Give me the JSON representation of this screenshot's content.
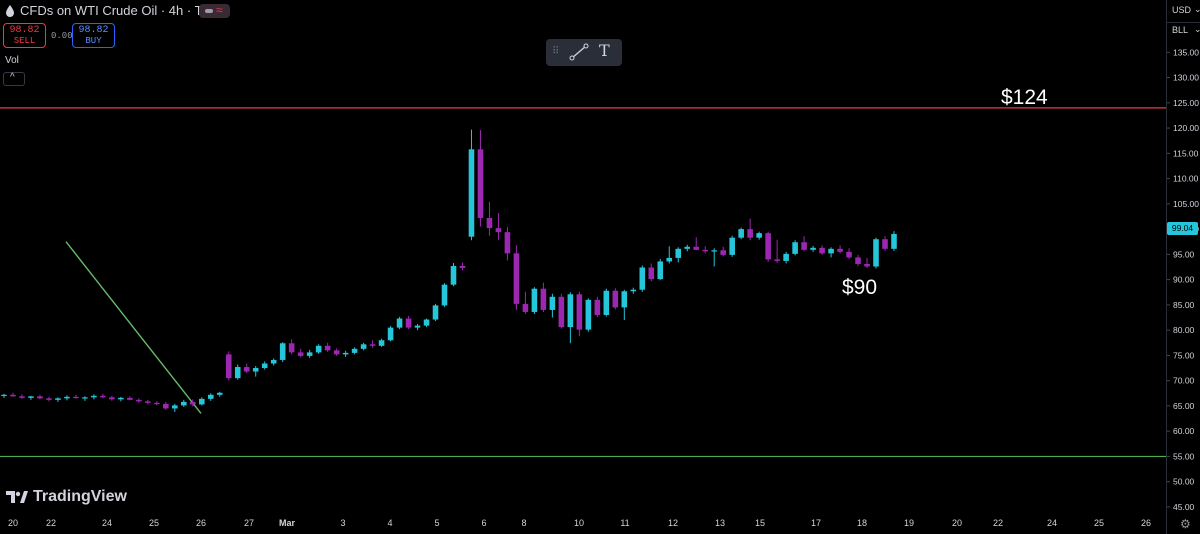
{
  "header": {
    "symbol_title": "CFDs on WTI Crude Oil · 4h · TVC",
    "sell": {
      "price": "98.82",
      "label": "SELL"
    },
    "buy": {
      "price": "98.82",
      "label": "BUY"
    },
    "spread": "0.00",
    "volume_label": "Vol"
  },
  "price_axis": {
    "currency": "USD",
    "unit": "BLL",
    "last_price": "99.04",
    "ticks": [
      "45.00",
      "50.00",
      "55.00",
      "60.00",
      "65.00",
      "70.00",
      "75.00",
      "80.00",
      "85.00",
      "90.00",
      "95.00",
      "100.00",
      "105.00",
      "110.00",
      "115.00",
      "120.00",
      "125.00",
      "130.00",
      "135.00"
    ]
  },
  "annotations": {
    "resistance_label": "$124",
    "trend_label": "$90"
  },
  "brand": "TradingView",
  "colors": {
    "background": "#000000",
    "bull": "#26c6da",
    "bear": "#9c27b0",
    "resistance": "#f23645",
    "support": "#4caf50",
    "trendline": "#66bb6a",
    "text": "#d1d4dc"
  },
  "chart_data": {
    "type": "candlestick",
    "title": "CFDs on WTI Crude Oil · 4h · TVC",
    "ylim": [
      44,
      141
    ],
    "y_ticks": [
      45,
      50,
      55,
      60,
      65,
      70,
      75,
      80,
      85,
      90,
      95,
      100,
      105,
      110,
      115,
      120,
      125,
      130,
      135
    ],
    "x_axis": {
      "labels": [
        "20",
        "22",
        "24",
        "25",
        "26",
        "27",
        "Mar",
        "3",
        "4",
        "5",
        "6",
        "8",
        "10",
        "11",
        "12",
        "13",
        "15",
        "17",
        "18",
        "19",
        "20",
        "22",
        "24",
        "25",
        "26"
      ]
    },
    "horizontal_lines": [
      {
        "value": 124,
        "color": "#f23645",
        "label": "$124"
      },
      {
        "value": 55,
        "color": "#4caf50"
      }
    ],
    "trendline": {
      "from": {
        "x": "26",
        "y": 63.5
      },
      "to": {
        "x": "22",
        "y": 97.5
      },
      "label": "$90"
    },
    "last_price": 99.04,
    "candles": [
      {
        "o": 67.0,
        "h": 67.4,
        "l": 66.6,
        "c": 67.2
      },
      {
        "o": 67.2,
        "h": 67.6,
        "l": 66.8,
        "c": 66.9
      },
      {
        "o": 66.9,
        "h": 67.3,
        "l": 66.4,
        "c": 66.6
      },
      {
        "o": 66.6,
        "h": 67.0,
        "l": 66.2,
        "c": 66.9
      },
      {
        "o": 66.9,
        "h": 67.2,
        "l": 66.3,
        "c": 66.5
      },
      {
        "o": 66.5,
        "h": 66.8,
        "l": 65.9,
        "c": 66.2
      },
      {
        "o": 66.2,
        "h": 66.7,
        "l": 65.8,
        "c": 66.5
      },
      {
        "o": 66.5,
        "h": 67.1,
        "l": 66.1,
        "c": 66.8
      },
      {
        "o": 66.8,
        "h": 67.2,
        "l": 66.4,
        "c": 66.6
      },
      {
        "o": 66.6,
        "h": 66.9,
        "l": 66.0,
        "c": 66.7
      },
      {
        "o": 66.7,
        "h": 67.3,
        "l": 66.3,
        "c": 67.0
      },
      {
        "o": 67.0,
        "h": 67.4,
        "l": 66.5,
        "c": 66.7
      },
      {
        "o": 66.7,
        "h": 67.0,
        "l": 66.0,
        "c": 66.3
      },
      {
        "o": 66.3,
        "h": 66.8,
        "l": 65.9,
        "c": 66.6
      },
      {
        "o": 66.6,
        "h": 66.9,
        "l": 66.1,
        "c": 66.2
      },
      {
        "o": 66.2,
        "h": 66.5,
        "l": 65.6,
        "c": 65.9
      },
      {
        "o": 65.9,
        "h": 66.2,
        "l": 65.3,
        "c": 65.6
      },
      {
        "o": 65.6,
        "h": 66.0,
        "l": 65.1,
        "c": 65.4
      },
      {
        "o": 65.4,
        "h": 65.8,
        "l": 64.2,
        "c": 64.5
      },
      {
        "o": 64.5,
        "h": 65.4,
        "l": 63.8,
        "c": 65.1
      },
      {
        "o": 65.1,
        "h": 66.2,
        "l": 64.8,
        "c": 65.8
      },
      {
        "o": 65.8,
        "h": 66.3,
        "l": 64.9,
        "c": 65.3
      },
      {
        "o": 65.3,
        "h": 66.7,
        "l": 65.1,
        "c": 66.4
      },
      {
        "o": 66.4,
        "h": 67.5,
        "l": 66.0,
        "c": 67.2
      },
      {
        "o": 67.2,
        "h": 67.8,
        "l": 66.8,
        "c": 67.6
      },
      {
        "o": 75.2,
        "h": 75.8,
        "l": 70.0,
        "c": 70.5
      },
      {
        "o": 70.5,
        "h": 73.2,
        "l": 70.2,
        "c": 72.7
      },
      {
        "o": 72.7,
        "h": 73.4,
        "l": 71.5,
        "c": 71.8
      },
      {
        "o": 71.8,
        "h": 72.9,
        "l": 70.8,
        "c": 72.5
      },
      {
        "o": 72.5,
        "h": 73.8,
        "l": 72.2,
        "c": 73.4
      },
      {
        "o": 73.4,
        "h": 74.4,
        "l": 73.0,
        "c": 74.1
      },
      {
        "o": 74.1,
        "h": 77.6,
        "l": 73.7,
        "c": 77.4
      },
      {
        "o": 77.4,
        "h": 78.2,
        "l": 75.2,
        "c": 75.6
      },
      {
        "o": 75.6,
        "h": 76.3,
        "l": 74.6,
        "c": 74.9
      },
      {
        "o": 74.9,
        "h": 76.1,
        "l": 74.5,
        "c": 75.6
      },
      {
        "o": 75.6,
        "h": 77.2,
        "l": 75.3,
        "c": 76.9
      },
      {
        "o": 76.9,
        "h": 77.5,
        "l": 75.7,
        "c": 76.0
      },
      {
        "o": 76.0,
        "h": 76.4,
        "l": 74.9,
        "c": 75.2
      },
      {
        "o": 75.2,
        "h": 75.9,
        "l": 74.7,
        "c": 75.5
      },
      {
        "o": 75.5,
        "h": 76.6,
        "l": 75.2,
        "c": 76.3
      },
      {
        "o": 76.3,
        "h": 77.5,
        "l": 76.0,
        "c": 77.2
      },
      {
        "o": 77.2,
        "h": 78.0,
        "l": 76.5,
        "c": 76.9
      },
      {
        "o": 76.9,
        "h": 78.3,
        "l": 76.7,
        "c": 78.0
      },
      {
        "o": 78.0,
        "h": 80.8,
        "l": 77.8,
        "c": 80.5
      },
      {
        "o": 80.5,
        "h": 82.6,
        "l": 80.2,
        "c": 82.3
      },
      {
        "o": 82.3,
        "h": 82.8,
        "l": 80.2,
        "c": 80.5
      },
      {
        "o": 80.5,
        "h": 81.2,
        "l": 80.0,
        "c": 80.9
      },
      {
        "o": 80.9,
        "h": 82.3,
        "l": 80.6,
        "c": 82.1
      },
      {
        "o": 82.1,
        "h": 85.2,
        "l": 81.8,
        "c": 84.9
      },
      {
        "o": 84.9,
        "h": 89.3,
        "l": 84.6,
        "c": 89.0
      },
      {
        "o": 89.0,
        "h": 93.3,
        "l": 88.7,
        "c": 92.7
      },
      {
        "o": 92.7,
        "h": 93.4,
        "l": 91.8,
        "c": 92.3
      },
      {
        "o": 98.5,
        "h": 119.7,
        "l": 97.8,
        "c": 115.8
      },
      {
        "o": 115.8,
        "h": 119.6,
        "l": 100.5,
        "c": 102.2
      },
      {
        "o": 102.2,
        "h": 105.4,
        "l": 98.7,
        "c": 100.2
      },
      {
        "o": 100.2,
        "h": 103.2,
        "l": 97.8,
        "c": 99.4
      },
      {
        "o": 99.4,
        "h": 100.4,
        "l": 93.8,
        "c": 95.2
      },
      {
        "o": 95.2,
        "h": 96.8,
        "l": 84.0,
        "c": 85.2
      },
      {
        "o": 85.2,
        "h": 87.6,
        "l": 83.2,
        "c": 83.6
      },
      {
        "o": 83.6,
        "h": 88.5,
        "l": 83.2,
        "c": 88.2
      },
      {
        "o": 88.2,
        "h": 89.4,
        "l": 83.6,
        "c": 84.0
      },
      {
        "o": 84.0,
        "h": 87.2,
        "l": 82.5,
        "c": 86.6
      },
      {
        "o": 86.6,
        "h": 87.2,
        "l": 80.3,
        "c": 80.6
      },
      {
        "o": 80.6,
        "h": 87.5,
        "l": 77.4,
        "c": 87.1
      },
      {
        "o": 87.1,
        "h": 87.6,
        "l": 78.8,
        "c": 80.1
      },
      {
        "o": 80.1,
        "h": 86.3,
        "l": 79.7,
        "c": 86.0
      },
      {
        "o": 86.0,
        "h": 86.6,
        "l": 82.6,
        "c": 83.0
      },
      {
        "o": 83.0,
        "h": 88.2,
        "l": 82.7,
        "c": 87.8
      },
      {
        "o": 87.8,
        "h": 88.3,
        "l": 84.1,
        "c": 84.5
      },
      {
        "o": 84.5,
        "h": 88.0,
        "l": 82.0,
        "c": 87.7
      },
      {
        "o": 87.7,
        "h": 88.4,
        "l": 87.2,
        "c": 88.0
      },
      {
        "o": 88.0,
        "h": 92.8,
        "l": 87.6,
        "c": 92.4
      },
      {
        "o": 92.4,
        "h": 93.2,
        "l": 89.7,
        "c": 90.1
      },
      {
        "o": 90.1,
        "h": 94.1,
        "l": 89.9,
        "c": 93.6
      },
      {
        "o": 93.6,
        "h": 96.6,
        "l": 93.2,
        "c": 94.3
      },
      {
        "o": 94.3,
        "h": 96.4,
        "l": 93.4,
        "c": 96.1
      },
      {
        "o": 96.1,
        "h": 96.9,
        "l": 95.6,
        "c": 96.5
      },
      {
        "o": 96.5,
        "h": 98.4,
        "l": 95.8,
        "c": 95.9
      },
      {
        "o": 95.9,
        "h": 96.6,
        "l": 95.2,
        "c": 95.6
      },
      {
        "o": 95.6,
        "h": 96.2,
        "l": 92.6,
        "c": 95.8
      },
      {
        "o": 95.8,
        "h": 96.5,
        "l": 94.6,
        "c": 94.9
      },
      {
        "o": 94.9,
        "h": 98.7,
        "l": 94.5,
        "c": 98.3
      },
      {
        "o": 98.3,
        "h": 100.3,
        "l": 98.0,
        "c": 100.0
      },
      {
        "o": 100.0,
        "h": 102.1,
        "l": 97.8,
        "c": 98.3
      },
      {
        "o": 98.3,
        "h": 99.5,
        "l": 97.9,
        "c": 99.2
      },
      {
        "o": 99.2,
        "h": 99.5,
        "l": 93.5,
        "c": 94.0
      },
      {
        "o": 94.0,
        "h": 97.9,
        "l": 93.3,
        "c": 93.7
      },
      {
        "o": 93.7,
        "h": 95.5,
        "l": 93.2,
        "c": 95.1
      },
      {
        "o": 95.1,
        "h": 97.8,
        "l": 94.8,
        "c": 97.4
      },
      {
        "o": 97.4,
        "h": 98.6,
        "l": 95.6,
        "c": 95.9
      },
      {
        "o": 95.9,
        "h": 96.7,
        "l": 95.5,
        "c": 96.3
      },
      {
        "o": 96.3,
        "h": 96.8,
        "l": 94.9,
        "c": 95.2
      },
      {
        "o": 95.2,
        "h": 96.4,
        "l": 94.4,
        "c": 96.1
      },
      {
        "o": 96.1,
        "h": 96.8,
        "l": 95.2,
        "c": 95.5
      },
      {
        "o": 95.5,
        "h": 96.2,
        "l": 94.1,
        "c": 94.4
      },
      {
        "o": 94.4,
        "h": 94.9,
        "l": 92.7,
        "c": 93.1
      },
      {
        "o": 93.1,
        "h": 94.3,
        "l": 92.3,
        "c": 92.6
      },
      {
        "o": 92.6,
        "h": 98.3,
        "l": 92.2,
        "c": 98.0
      },
      {
        "o": 98.0,
        "h": 98.6,
        "l": 95.7,
        "c": 96.1
      },
      {
        "o": 96.1,
        "h": 99.6,
        "l": 95.7,
        "c": 99.04
      }
    ]
  }
}
